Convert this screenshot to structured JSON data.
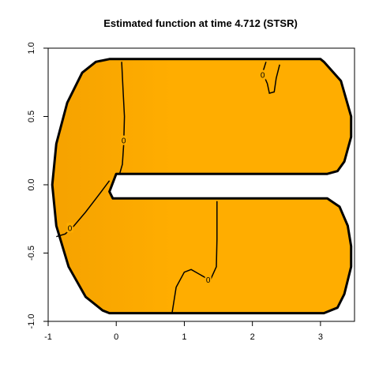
{
  "chart_data": {
    "type": "heatmap",
    "title": "Estimated function at time 4.712 (STSR)",
    "xlabel": "",
    "ylabel": "",
    "xlim": [
      -1,
      3.5
    ],
    "ylim": [
      -1,
      1
    ],
    "x_ticks": [
      -1,
      0,
      1,
      2,
      3
    ],
    "x_tick_labels": [
      "-1",
      "0",
      "1",
      "2",
      "3"
    ],
    "y_ticks": [
      -1,
      -0.5,
      0,
      0.5,
      1
    ],
    "y_tick_labels": [
      "-1.0",
      "-0.5",
      "0.0",
      "0.5",
      "1.0"
    ],
    "fill_color": "#ffad00",
    "fill_color_dark": "#f5a200",
    "boundary_color": "#000000",
    "contour_level_label": "0",
    "domain_boundary": [
      [
        -0.1,
        0.92
      ],
      [
        3.0,
        0.92
      ],
      [
        3.05,
        0.9
      ],
      [
        3.3,
        0.76
      ],
      [
        3.45,
        0.5
      ],
      [
        3.45,
        0.35
      ],
      [
        3.35,
        0.17
      ],
      [
        3.25,
        0.1
      ],
      [
        3.1,
        0.08
      ],
      [
        0.0,
        0.08
      ],
      [
        -0.1,
        -0.05
      ],
      [
        -0.05,
        -0.1
      ],
      [
        3.1,
        -0.1
      ],
      [
        3.28,
        -0.16
      ],
      [
        3.4,
        -0.3
      ],
      [
        3.45,
        -0.45
      ],
      [
        3.45,
        -0.6
      ],
      [
        3.35,
        -0.8
      ],
      [
        3.25,
        -0.9
      ],
      [
        3.05,
        -0.94
      ],
      [
        -0.1,
        -0.94
      ],
      [
        -0.2,
        -0.92
      ],
      [
        -0.45,
        -0.82
      ],
      [
        -0.7,
        -0.6
      ],
      [
        -0.88,
        -0.3
      ],
      [
        -0.94,
        0.0
      ],
      [
        -0.88,
        0.3
      ],
      [
        -0.72,
        0.6
      ],
      [
        -0.5,
        0.82
      ],
      [
        -0.3,
        0.9
      ],
      [
        -0.1,
        0.92
      ]
    ],
    "contours": [
      {
        "label": "0",
        "label_at": [
          0.11,
          0.32
        ],
        "points": [
          [
            0.08,
            0.9
          ],
          [
            0.1,
            0.7
          ],
          [
            0.12,
            0.5
          ],
          [
            0.11,
            0.3
          ],
          [
            0.09,
            0.15
          ],
          [
            0.05,
            0.08
          ]
        ]
      },
      {
        "label": "0",
        "label_at": [
          -0.68,
          -0.32
        ],
        "points": [
          [
            -0.1,
            0.03
          ],
          [
            -0.25,
            -0.07
          ],
          [
            -0.45,
            -0.2
          ],
          [
            -0.62,
            -0.3
          ],
          [
            -0.75,
            -0.36
          ],
          [
            -0.88,
            -0.38
          ]
        ]
      },
      {
        "label": "0",
        "label_at": [
          1.35,
          -0.7
        ],
        "points": [
          [
            1.48,
            -0.12
          ],
          [
            1.48,
            -0.4
          ],
          [
            1.47,
            -0.6
          ],
          [
            1.38,
            -0.7
          ],
          [
            1.1,
            -0.62
          ],
          [
            1.0,
            -0.64
          ],
          [
            0.88,
            -0.75
          ],
          [
            0.82,
            -0.94
          ]
        ]
      },
      {
        "label": "0",
        "label_at": [
          2.15,
          0.8
        ],
        "points": [
          [
            2.2,
            0.9
          ],
          [
            2.15,
            0.82
          ],
          [
            2.22,
            0.74
          ],
          [
            2.25,
            0.67
          ],
          [
            2.32,
            0.68
          ],
          [
            2.35,
            0.78
          ],
          [
            2.4,
            0.88
          ]
        ]
      }
    ]
  }
}
